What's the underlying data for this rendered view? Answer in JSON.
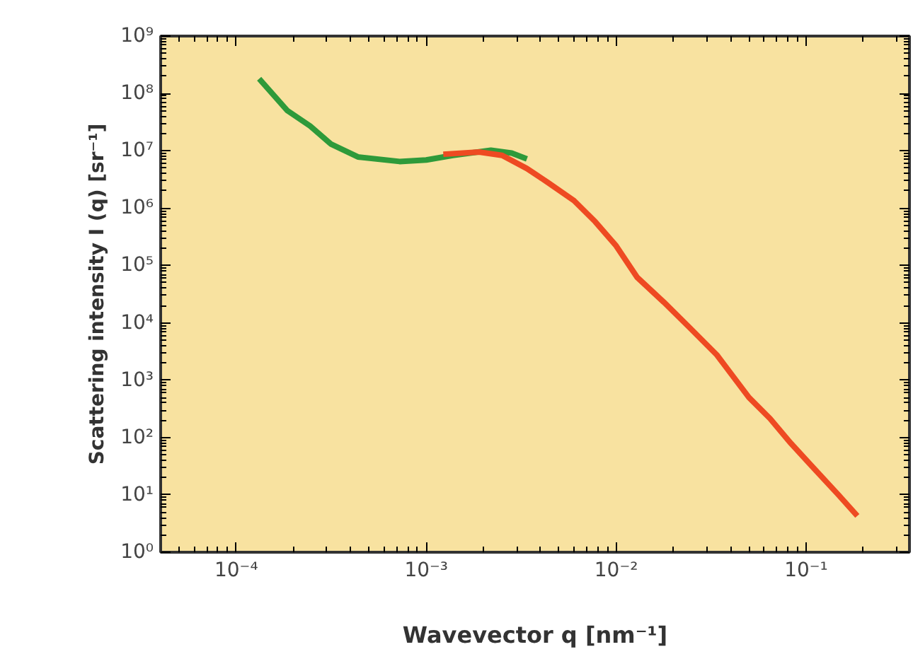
{
  "chart_data": {
    "type": "line",
    "xlabel": "Wavevector q [nm⁻¹]",
    "ylabel": "Scattering intensity I (q) [sr⁻¹]",
    "log": "xy",
    "grid": false,
    "xlim": [
      4e-05,
      0.35
    ],
    "ylim": [
      1,
      1000000000.0
    ],
    "xticks": [
      {
        "value": 0.0001,
        "label": "10⁻⁴"
      },
      {
        "value": 0.001,
        "label": "10⁻³"
      },
      {
        "value": 0.01,
        "label": "10⁻²"
      },
      {
        "value": 0.1,
        "label": "10⁻¹"
      }
    ],
    "yticks": [
      {
        "value": 1,
        "label": "10⁰"
      },
      {
        "value": 10,
        "label": "10¹"
      },
      {
        "value": 100,
        "label": "10²"
      },
      {
        "value": 1000,
        "label": "10³"
      },
      {
        "value": 10000,
        "label": "10⁴"
      },
      {
        "value": 100000,
        "label": "10⁵"
      },
      {
        "value": 1000000,
        "label": "10⁶"
      },
      {
        "value": 10000000,
        "label": "10⁷"
      },
      {
        "value": 100000000,
        "label": "10⁸"
      },
      {
        "value": 1000000000,
        "label": "10⁹"
      }
    ],
    "series": [
      {
        "color": "#2e9a3a",
        "x": [
          0.000132,
          0.000186,
          0.000245,
          0.000316,
          0.000437,
          0.000724,
          0.001,
          0.00138,
          0.00219,
          0.00282,
          0.00339
        ],
        "values": [
          180000000.0,
          50000000.0,
          27000000.0,
          13000000.0,
          7800000.0,
          6500000.0,
          6900000.0,
          8300000.0,
          10200000.0,
          9100000.0,
          7200000.0
        ]
      },
      {
        "color": "#ee4a22",
        "x": [
          0.00123,
          0.0019,
          0.00251,
          0.00339,
          0.00437,
          0.006,
          0.00776,
          0.01,
          0.0129,
          0.0178,
          0.0245,
          0.0339,
          0.05,
          0.0646,
          0.0832,
          0.107,
          0.148,
          0.186
        ],
        "values": [
          8700000.0,
          9500000.0,
          8300000.0,
          4900000.0,
          2800000.0,
          1350000.0,
          580000.0,
          220000.0,
          62000.0,
          23000.0,
          8100.0,
          2750.0,
          500,
          214,
          79,
          32,
          10,
          4.3
        ]
      }
    ]
  }
}
